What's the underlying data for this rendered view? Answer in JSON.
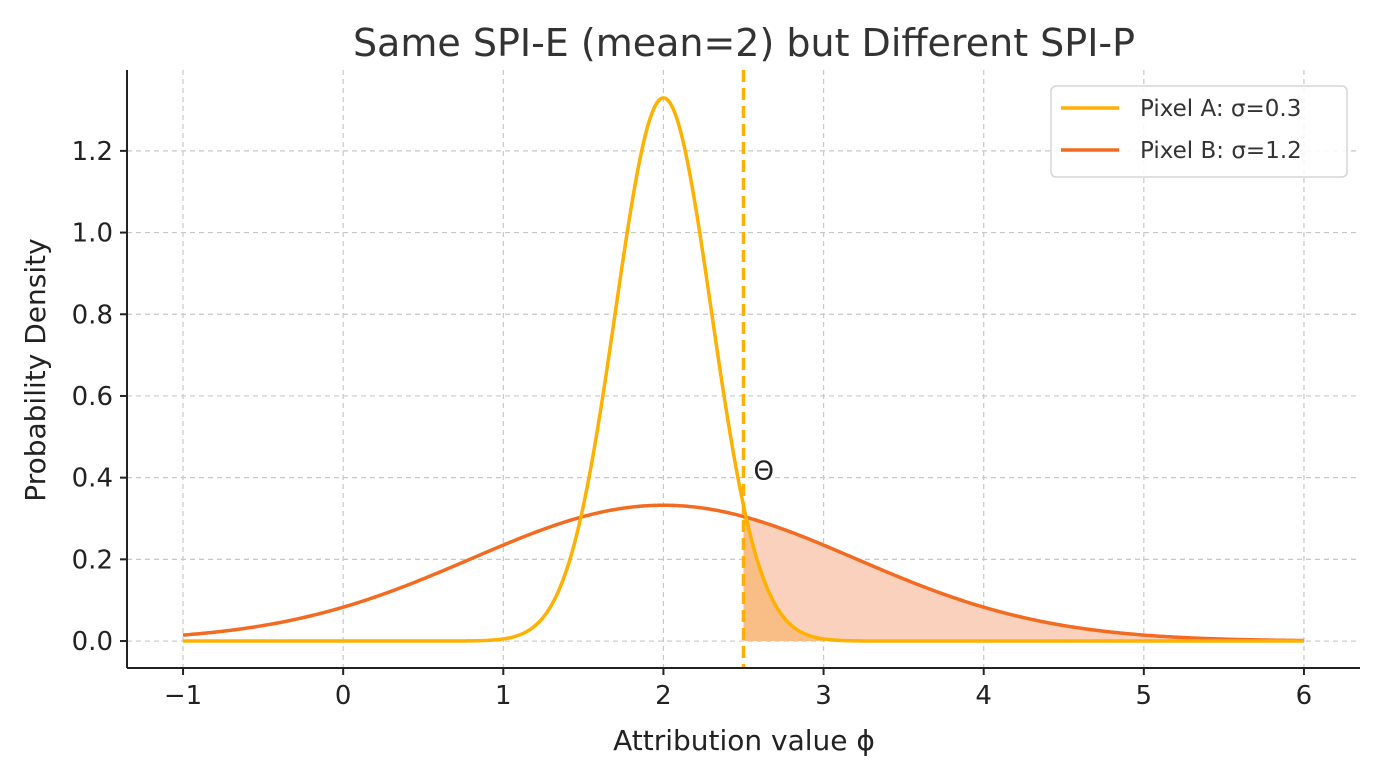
{
  "chart_data": {
    "type": "line",
    "title": "Same SPI-E (mean=2) but Different SPI-P",
    "xlabel": "Attribution value ϕ",
    "ylabel": "Probability Density",
    "xlim": [
      -1.35,
      6.35
    ],
    "ylim": [
      -0.066,
      1.398
    ],
    "x_range": [
      -1,
      6
    ],
    "xticks": [
      -1,
      0,
      1,
      2,
      3,
      4,
      5,
      6
    ],
    "xtick_labels": [
      "−1",
      "0",
      "1",
      "2",
      "3",
      "4",
      "5",
      "6"
    ],
    "yticks": [
      0.0,
      0.2,
      0.4,
      0.6,
      0.8,
      1.0,
      1.2
    ],
    "ytick_labels": [
      "0.0",
      "0.2",
      "0.4",
      "0.6",
      "0.8",
      "1.0",
      "1.2"
    ],
    "grid": true,
    "legend_position": "top-right",
    "series": [
      {
        "name": "Pixel A: σ=0.3",
        "distribution": "normal",
        "mean": 2,
        "sigma": 0.3,
        "color": "#FFB000",
        "fill_color": "#F9BE85",
        "fill_from": 2.5
      },
      {
        "name": "Pixel B: σ=1.2",
        "distribution": "normal",
        "mean": 2,
        "sigma": 1.2,
        "color": "#F26B21",
        "fill_color": "#FAD1BC",
        "fill_from": 2.5
      }
    ],
    "threshold": {
      "x": 2.5,
      "label": "Θ",
      "color": "#FFB000",
      "label_y": 0.42
    }
  }
}
